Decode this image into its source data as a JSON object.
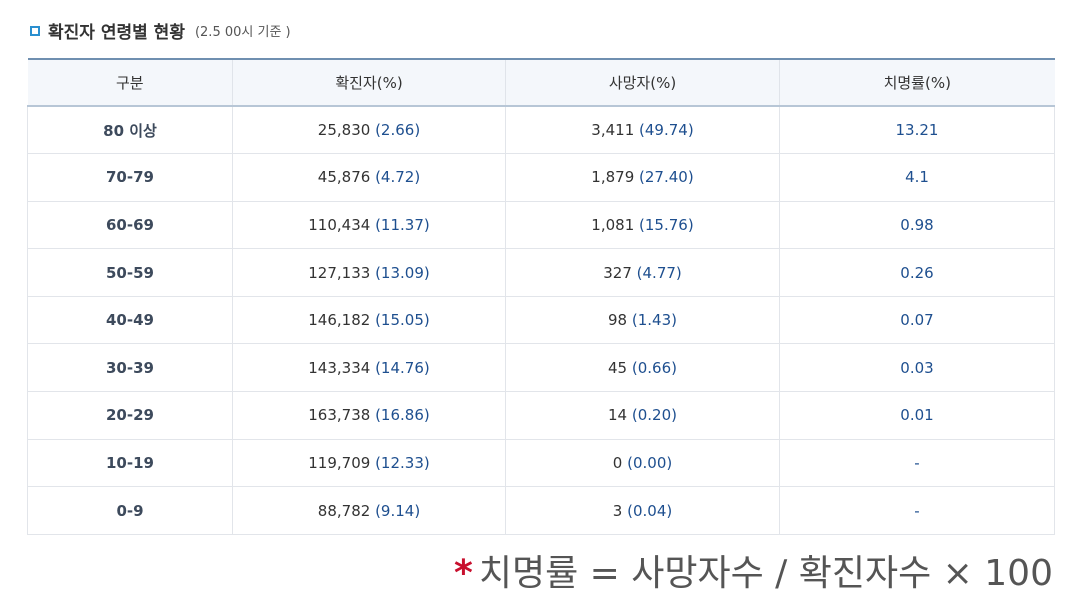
{
  "title": {
    "text": "확진자 연령별 현황",
    "note": "(2.5 00시 기준 )"
  },
  "table": {
    "headers": [
      "구분",
      "확진자(%)",
      "사망자(%)",
      "치명률(%)"
    ],
    "rows": [
      {
        "age": "80 이상",
        "confirmed": "25,830",
        "confirmed_pct": "(2.66)",
        "deaths": "3,411",
        "deaths_pct": "(49.74)",
        "fatality": "13.21"
      },
      {
        "age": "70-79",
        "confirmed": "45,876",
        "confirmed_pct": "(4.72)",
        "deaths": "1,879",
        "deaths_pct": "(27.40)",
        "fatality": "4.1"
      },
      {
        "age": "60-69",
        "confirmed": "110,434",
        "confirmed_pct": "(11.37)",
        "deaths": "1,081",
        "deaths_pct": "(15.76)",
        "fatality": "0.98"
      },
      {
        "age": "50-59",
        "confirmed": "127,133",
        "confirmed_pct": "(13.09)",
        "deaths": "327",
        "deaths_pct": "(4.77)",
        "fatality": "0.26"
      },
      {
        "age": "40-49",
        "confirmed": "146,182",
        "confirmed_pct": "(15.05)",
        "deaths": "98",
        "deaths_pct": "(1.43)",
        "fatality": "0.07"
      },
      {
        "age": "30-39",
        "confirmed": "143,334",
        "confirmed_pct": "(14.76)",
        "deaths": "45",
        "deaths_pct": "(0.66)",
        "fatality": "0.03"
      },
      {
        "age": "20-29",
        "confirmed": "163,738",
        "confirmed_pct": "(16.86)",
        "deaths": "14",
        "deaths_pct": "(0.20)",
        "fatality": "0.01"
      },
      {
        "age": "10-19",
        "confirmed": "119,709",
        "confirmed_pct": "(12.33)",
        "deaths": "0",
        "deaths_pct": "(0.00)",
        "fatality": "-"
      },
      {
        "age": "0-9",
        "confirmed": "88,782",
        "confirmed_pct": "(9.14)",
        "deaths": "3",
        "deaths_pct": "(0.04)",
        "fatality": "-"
      }
    ]
  },
  "footnote": {
    "star": "*",
    "text": "치명률 = 사망자수 / 확진자수 × 100"
  }
}
